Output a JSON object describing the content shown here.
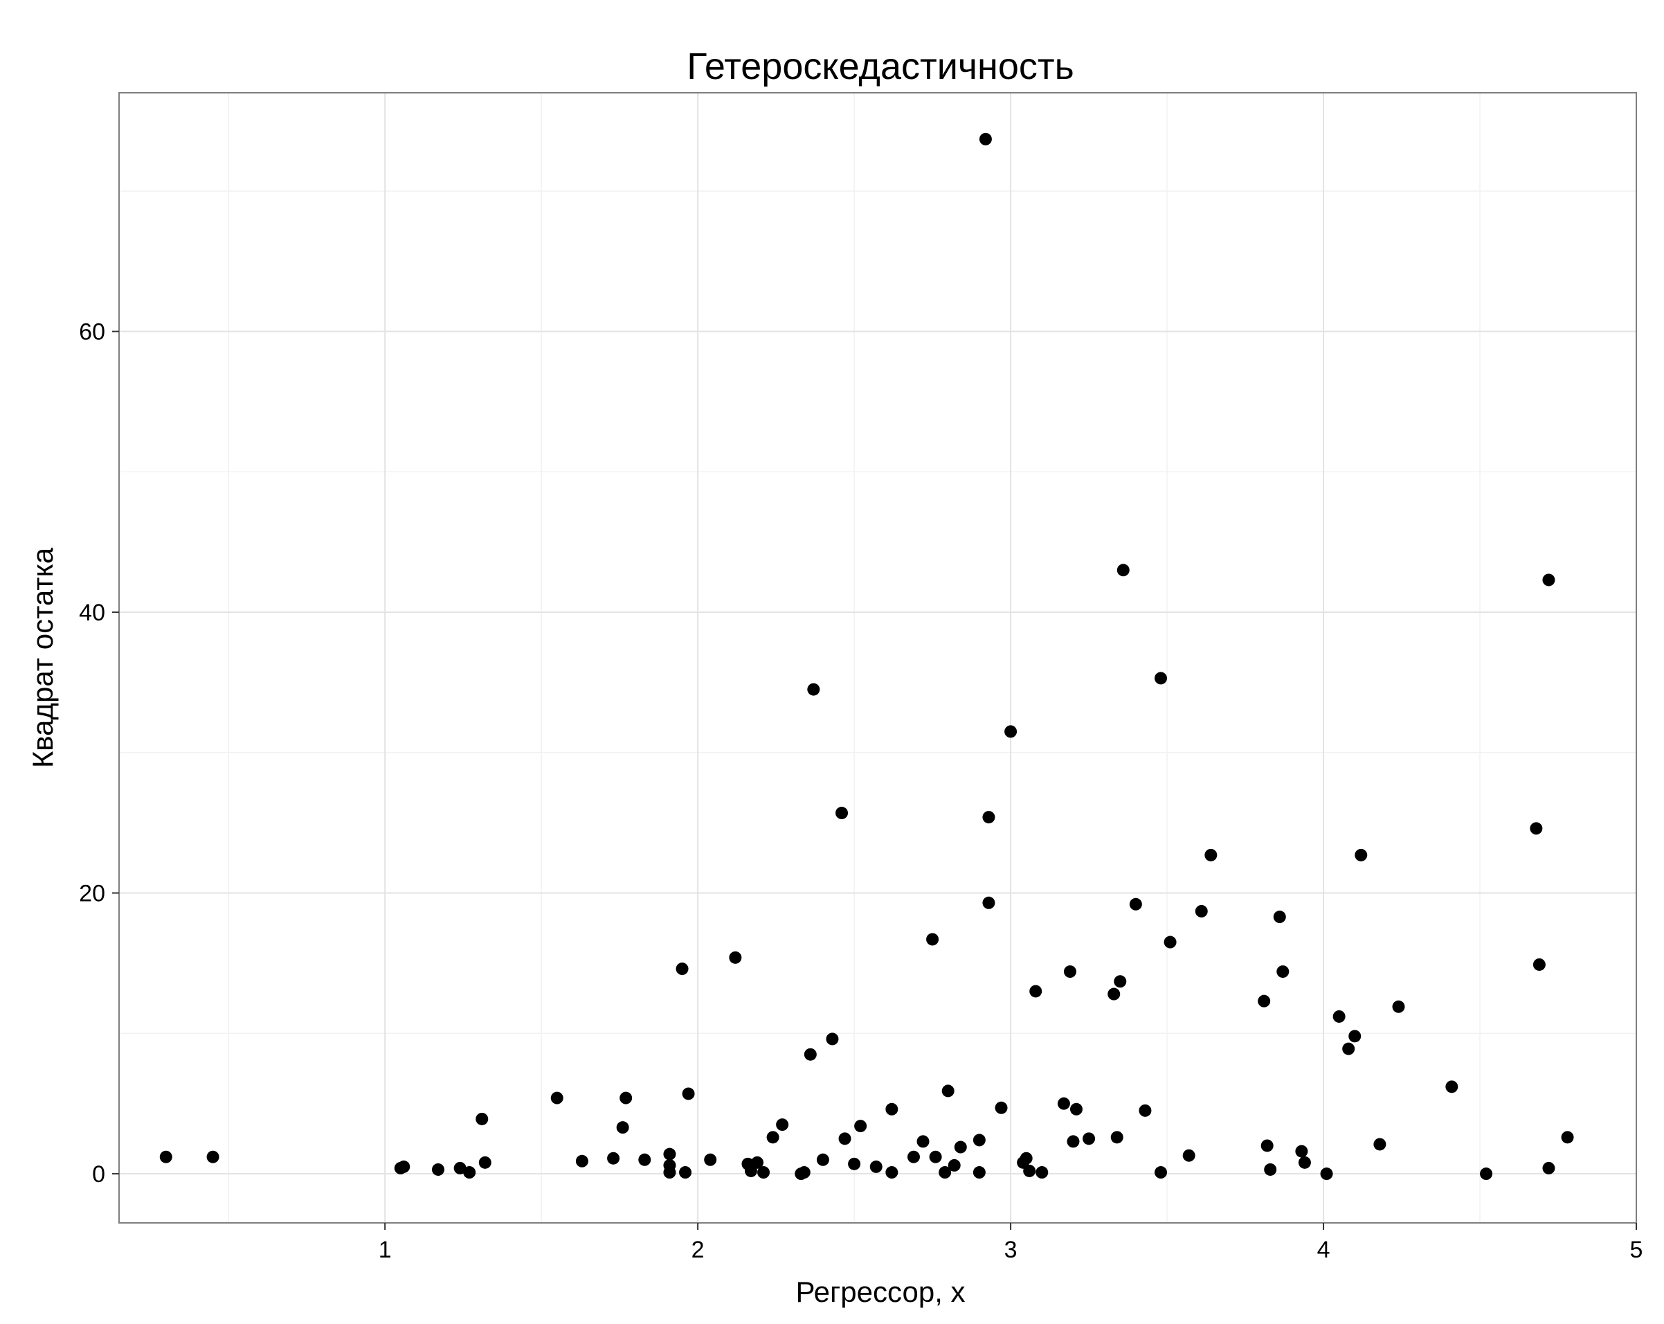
{
  "chart_data": {
    "type": "scatter",
    "title": "Гетероскедастичность",
    "xlabel": "Регрессор, x",
    "ylabel": "Квадрат остатка",
    "xlim": [
      0.15,
      5.0
    ],
    "ylim": [
      -3.5,
      77
    ],
    "x_ticks": [
      1,
      2,
      3,
      4,
      5
    ],
    "y_ticks": [
      0,
      20,
      40,
      60
    ],
    "grid": true,
    "point_color": "#000000",
    "points": [
      {
        "x": 0.3,
        "y": 1.2
      },
      {
        "x": 0.45,
        "y": 1.2
      },
      {
        "x": 1.05,
        "y": 0.4
      },
      {
        "x": 1.06,
        "y": 0.5
      },
      {
        "x": 1.17,
        "y": 0.3
      },
      {
        "x": 1.24,
        "y": 0.4
      },
      {
        "x": 1.27,
        "y": 0.1
      },
      {
        "x": 1.31,
        "y": 3.9
      },
      {
        "x": 1.32,
        "y": 0.8
      },
      {
        "x": 1.55,
        "y": 5.4
      },
      {
        "x": 1.63,
        "y": 0.9
      },
      {
        "x": 1.73,
        "y": 1.1
      },
      {
        "x": 1.76,
        "y": 3.3
      },
      {
        "x": 1.77,
        "y": 5.4
      },
      {
        "x": 1.83,
        "y": 1.0
      },
      {
        "x": 1.91,
        "y": 1.4
      },
      {
        "x": 1.91,
        "y": 0.6
      },
      {
        "x": 1.91,
        "y": 0.1
      },
      {
        "x": 1.95,
        "y": 14.6
      },
      {
        "x": 1.96,
        "y": 0.1
      },
      {
        "x": 1.97,
        "y": 5.7
      },
      {
        "x": 2.04,
        "y": 1.0
      },
      {
        "x": 2.12,
        "y": 15.4
      },
      {
        "x": 2.16,
        "y": 0.7
      },
      {
        "x": 2.17,
        "y": 0.2
      },
      {
        "x": 2.19,
        "y": 0.8
      },
      {
        "x": 2.21,
        "y": 0.1
      },
      {
        "x": 2.24,
        "y": 2.6
      },
      {
        "x": 2.27,
        "y": 3.5
      },
      {
        "x": 2.33,
        "y": 0.0
      },
      {
        "x": 2.34,
        "y": 0.1
      },
      {
        "x": 2.36,
        "y": 8.5
      },
      {
        "x": 2.37,
        "y": 34.5
      },
      {
        "x": 2.4,
        "y": 1.0
      },
      {
        "x": 2.43,
        "y": 9.6
      },
      {
        "x": 2.46,
        "y": 25.7
      },
      {
        "x": 2.47,
        "y": 2.5
      },
      {
        "x": 2.5,
        "y": 0.7
      },
      {
        "x": 2.52,
        "y": 3.4
      },
      {
        "x": 2.57,
        "y": 0.5
      },
      {
        "x": 2.62,
        "y": 0.1
      },
      {
        "x": 2.62,
        "y": 4.6
      },
      {
        "x": 2.69,
        "y": 1.2
      },
      {
        "x": 2.72,
        "y": 2.3
      },
      {
        "x": 2.75,
        "y": 16.7
      },
      {
        "x": 2.76,
        "y": 1.2
      },
      {
        "x": 2.79,
        "y": 0.1
      },
      {
        "x": 2.8,
        "y": 5.9
      },
      {
        "x": 2.82,
        "y": 0.6
      },
      {
        "x": 2.84,
        "y": 1.9
      },
      {
        "x": 2.9,
        "y": 2.4
      },
      {
        "x": 2.9,
        "y": 0.1
      },
      {
        "x": 2.92,
        "y": 73.7
      },
      {
        "x": 2.93,
        "y": 25.4
      },
      {
        "x": 2.93,
        "y": 19.3
      },
      {
        "x": 2.97,
        "y": 4.7
      },
      {
        "x": 3.0,
        "y": 31.5
      },
      {
        "x": 3.04,
        "y": 0.8
      },
      {
        "x": 3.05,
        "y": 1.1
      },
      {
        "x": 3.06,
        "y": 0.2
      },
      {
        "x": 3.08,
        "y": 13.0
      },
      {
        "x": 3.1,
        "y": 0.1
      },
      {
        "x": 3.17,
        "y": 5.0
      },
      {
        "x": 3.19,
        "y": 14.4
      },
      {
        "x": 3.2,
        "y": 2.3
      },
      {
        "x": 3.21,
        "y": 4.6
      },
      {
        "x": 3.25,
        "y": 2.5
      },
      {
        "x": 3.33,
        "y": 12.8
      },
      {
        "x": 3.34,
        "y": 2.6
      },
      {
        "x": 3.35,
        "y": 13.7
      },
      {
        "x": 3.36,
        "y": 43.0
      },
      {
        "x": 3.4,
        "y": 19.2
      },
      {
        "x": 3.43,
        "y": 4.5
      },
      {
        "x": 3.48,
        "y": 35.3
      },
      {
        "x": 3.48,
        "y": 0.1
      },
      {
        "x": 3.51,
        "y": 16.5
      },
      {
        "x": 3.57,
        "y": 1.3
      },
      {
        "x": 3.61,
        "y": 18.7
      },
      {
        "x": 3.64,
        "y": 22.7
      },
      {
        "x": 3.81,
        "y": 12.3
      },
      {
        "x": 3.82,
        "y": 2.0
      },
      {
        "x": 3.83,
        "y": 0.3
      },
      {
        "x": 3.86,
        "y": 18.3
      },
      {
        "x": 3.87,
        "y": 14.4
      },
      {
        "x": 3.93,
        "y": 1.6
      },
      {
        "x": 3.94,
        "y": 0.8
      },
      {
        "x": 4.01,
        "y": 0.0
      },
      {
        "x": 4.05,
        "y": 11.2
      },
      {
        "x": 4.08,
        "y": 8.9
      },
      {
        "x": 4.1,
        "y": 9.8
      },
      {
        "x": 4.12,
        "y": 22.7
      },
      {
        "x": 4.18,
        "y": 2.1
      },
      {
        "x": 4.24,
        "y": 11.9
      },
      {
        "x": 4.41,
        "y": 6.2
      },
      {
        "x": 4.52,
        "y": 0.0
      },
      {
        "x": 4.68,
        "y": 24.6
      },
      {
        "x": 4.69,
        "y": 14.9
      },
      {
        "x": 4.72,
        "y": 42.3
      },
      {
        "x": 4.72,
        "y": 0.4
      },
      {
        "x": 4.78,
        "y": 2.6
      }
    ]
  }
}
